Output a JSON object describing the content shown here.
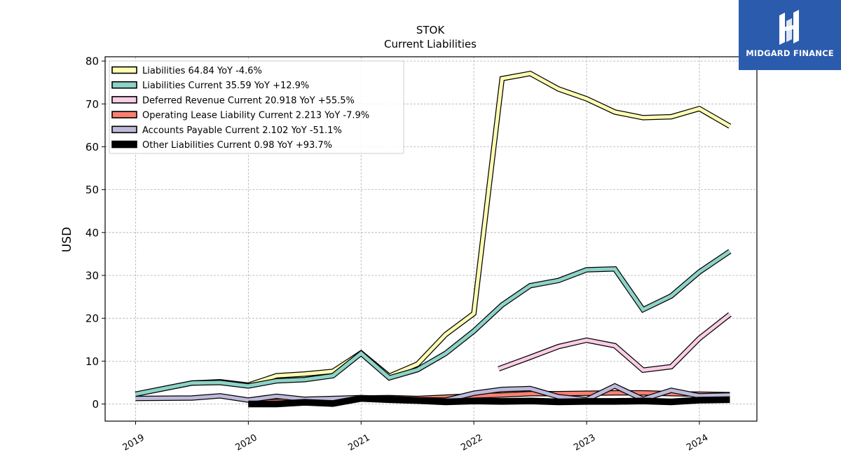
{
  "chart_data": {
    "type": "line",
    "title": "STOK",
    "subtitle": "Current  Liabilities",
    "ylabel": "USD",
    "xlabel": "",
    "ylim": [
      -4,
      81
    ],
    "xlim": [
      2018.73,
      2024.51
    ],
    "yticks": [
      0,
      10,
      20,
      30,
      40,
      50,
      60,
      70,
      80
    ],
    "xticks": [
      2019,
      2020,
      2021,
      2022,
      2023,
      2024
    ],
    "xtick_labels": [
      "2019",
      "2020",
      "2021",
      "2022",
      "2023",
      "2024"
    ],
    "grid": true,
    "legend_position": "top-left",
    "series": [
      {
        "name": "Liabilities  64.84 YoY -4.6%",
        "color": "#ffffb3",
        "lw": 5,
        "x": [
          2019.0,
          2019.5,
          2019.75,
          2020.0,
          2020.25,
          2020.5,
          2020.75,
          2021.0,
          2021.25,
          2021.5,
          2021.75,
          2022.0,
          2022.25,
          2022.5,
          2022.75,
          2023.0,
          2023.25,
          2023.5,
          2023.75,
          2024.0,
          2024.27
        ],
        "y": [
          2.3,
          4.9,
          5.2,
          4.4,
          6.6,
          7.0,
          7.6,
          11.9,
          6.5,
          9.3,
          16.2,
          21.1,
          75.9,
          77.1,
          73.5,
          71.2,
          68.1,
          66.8,
          67.0,
          68.9,
          64.8
        ]
      },
      {
        "name": "Liabilities Current  35.59 YoY +12.9%",
        "color": "#8dd3c7",
        "lw": 5,
        "x": [
          2019.0,
          2019.5,
          2019.75,
          2020.0,
          2020.25,
          2020.5,
          2020.75,
          2021.0,
          2021.25,
          2021.5,
          2021.75,
          2022.0,
          2022.25,
          2022.5,
          2022.75,
          2023.0,
          2023.25,
          2023.5,
          2023.75,
          2024.0,
          2024.27
        ],
        "y": [
          2.3,
          4.9,
          5.0,
          4.2,
          5.4,
          5.7,
          6.6,
          11.8,
          6.1,
          8.0,
          11.8,
          17.0,
          23.1,
          27.6,
          28.8,
          31.3,
          31.5,
          22.0,
          25.2,
          30.8,
          35.6
        ]
      },
      {
        "name": "Deferred Revenue Current  20.918 YoY +55.5%",
        "color": "#fccde5",
        "lw": 5,
        "x": [
          2022.22,
          2022.5,
          2022.75,
          2023.0,
          2023.25,
          2023.5,
          2023.75,
          2024.0,
          2024.27
        ],
        "y": [
          8.2,
          10.9,
          13.4,
          14.9,
          13.6,
          7.9,
          8.7,
          15.3,
          20.9
        ]
      },
      {
        "name": "Operating Lease Liability Current  2.213 YoY -7.9%",
        "color": "#fb8072",
        "lw": 5,
        "x": [
          2020.0,
          2020.25,
          2020.5,
          2020.75,
          2021.0,
          2021.25,
          2021.5,
          2021.75,
          2022.0,
          2022.25,
          2022.5,
          2022.75,
          2023.0,
          2023.25,
          2023.5,
          2023.75,
          2024.0,
          2024.27
        ],
        "y": [
          0.3,
          0.6,
          0.8,
          1.0,
          1.4,
          1.5,
          1.3,
          1.6,
          1.9,
          2.1,
          2.4,
          2.4,
          2.5,
          2.6,
          2.6,
          2.4,
          2.3,
          2.2
        ]
      },
      {
        "name": "Accounts Payable Current  2.102 YoY -51.1%",
        "color": "#bebada",
        "lw": 5,
        "x": [
          2019.0,
          2019.5,
          2019.75,
          2020.0,
          2020.25,
          2020.5,
          2020.75,
          2021.0,
          2021.25,
          2021.5,
          2021.75,
          2022.0,
          2022.25,
          2022.5,
          2022.75,
          2023.0,
          2023.25,
          2023.5,
          2023.75,
          2024.0,
          2024.27
        ],
        "y": [
          1.3,
          1.4,
          1.9,
          0.9,
          1.8,
          1.1,
          1.3,
          1.5,
          1.3,
          1.0,
          0.9,
          2.5,
          3.4,
          3.6,
          1.7,
          1.0,
          4.2,
          1.1,
          3.2,
          1.9,
          2.1
        ]
      },
      {
        "name": "Other Liabilities Current  0.98 YoY +93.7%",
        "color": "#000000",
        "lw": 7,
        "x": [
          2020.0,
          2020.25,
          2020.5,
          2020.75,
          2021.0,
          2021.25,
          2021.5,
          2021.75,
          2022.0,
          2022.25,
          2022.5,
          2022.75,
          2023.0,
          2023.25,
          2023.5,
          2023.75,
          2024.0,
          2024.27
        ],
        "y": [
          0.0,
          0.0,
          0.4,
          0.1,
          1.3,
          1.0,
          0.8,
          0.5,
          0.7,
          0.6,
          0.7,
          0.5,
          0.6,
          0.6,
          0.7,
          0.5,
          0.9,
          1.0
        ]
      }
    ]
  },
  "logo": {
    "text": "MIDGARD FINANCE",
    "background": "#2b5bad"
  }
}
